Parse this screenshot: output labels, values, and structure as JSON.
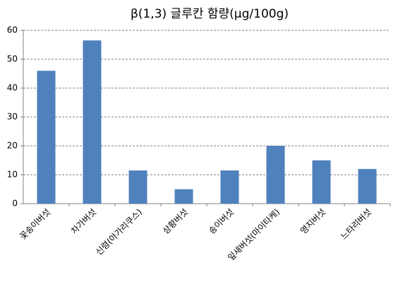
{
  "chart_data": {
    "type": "bar",
    "title": "β(1,3) 글루칸 함량(μg/100g)",
    "categories": [
      "꽃송이버섯",
      "차가버섯",
      "신령(아가리쿠스)",
      "상황버섯",
      "송이버섯",
      "잎새버섯(마이타케)",
      "영지버섯",
      "느타리버섯"
    ],
    "values": [
      46,
      56.5,
      11.5,
      5,
      11.5,
      20,
      15,
      12
    ],
    "color": "#4f81bd",
    "ylim": [
      0,
      60
    ],
    "yticks": [
      0,
      10,
      20,
      30,
      40,
      50,
      60
    ],
    "grid": true
  }
}
